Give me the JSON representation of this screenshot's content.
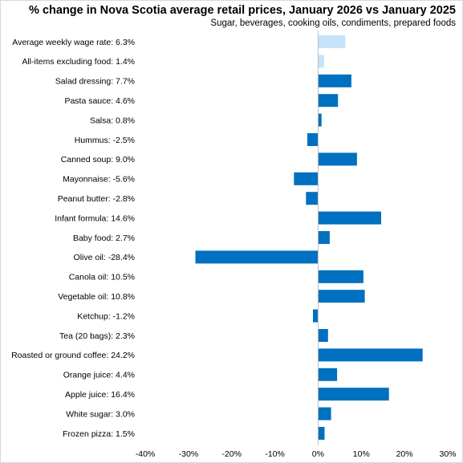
{
  "chart_data": {
    "type": "bar",
    "orientation": "horizontal",
    "title": "% change in Nova Scotia average retail prices, January 2026 vs January 2025",
    "subtitle": "Sugar, beverages,  cooking oils, condiments, prepared foods",
    "categories": [
      "Average weekly wage rate: 6.3%",
      "All-items excluding food: 1.4%",
      "Salad dressing: 7.7%",
      "Pasta sauce: 4.6%",
      "Salsa: 0.8%",
      "Hummus: -2.5%",
      "Canned soup: 9.0%",
      "Mayonnaise: -5.6%",
      "Peanut butter: -2.8%",
      "Infant formula: 14.6%",
      "Baby food: 2.7%",
      "Olive oil: -28.4%",
      "Canola oil: 10.5%",
      "Vegetable oil: 10.8%",
      "Ketchup: -1.2%",
      "Tea (20 bags): 2.3%",
      "Roasted or ground coffee: 24.2%",
      "Orange juice: 4.4%",
      "Apple juice: 16.4%",
      "White sugar: 3.0%",
      "Frozen pizza: 1.5%"
    ],
    "values": [
      6.3,
      1.4,
      7.7,
      4.6,
      0.8,
      -2.5,
      9.0,
      -5.6,
      -2.8,
      14.6,
      2.7,
      -28.4,
      10.5,
      10.8,
      -1.2,
      2.3,
      24.2,
      4.4,
      16.4,
      3.0,
      1.5
    ],
    "highlight_count": 2,
    "colors": {
      "primary": "#0070c0",
      "highlight": "#c5e3fb",
      "axis": "#bfbfbf"
    },
    "xlim": [
      -40,
      30
    ],
    "xticks": [
      -40,
      -30,
      -20,
      -10,
      0,
      10,
      20,
      30
    ],
    "xtick_labels": [
      "-40%",
      "-30%",
      "-20%",
      "-10%",
      "0%",
      "10%",
      "20%",
      "30%"
    ],
    "grid": false,
    "legend": "none"
  }
}
